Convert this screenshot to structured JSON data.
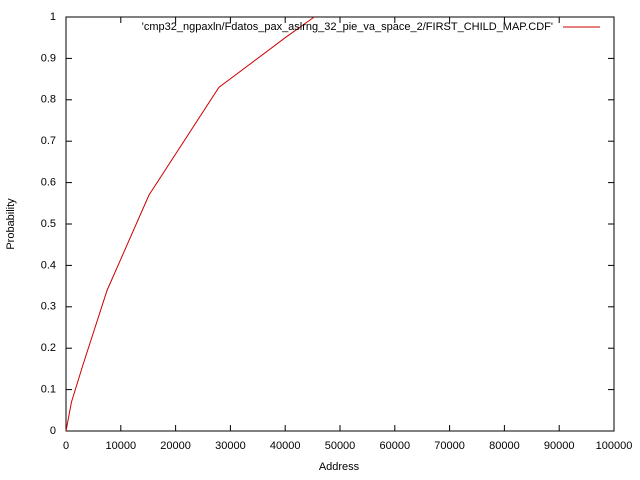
{
  "chart_data": {
    "type": "line",
    "x_label": "Address",
    "y_label": "Probability",
    "legend": "top-right",
    "series": [
      {
        "name": "'cmp32_ngpaxln/Fdatos_pax_aslrng_32_pie_va_space_2/FIRST_CHILD_MAP.CDF'",
        "color": "#cc0000",
        "x": [
          0,
          1000,
          3100,
          7500,
          15150,
          27900,
          40000,
          45300
        ],
        "values": [
          0,
          0.07,
          0.16,
          0.34,
          0.57,
          0.83,
          0.95,
          1.0
        ]
      }
    ],
    "xlim": [
      0,
      100000
    ],
    "ylim": [
      0,
      1
    ],
    "xticks": [
      0,
      10000,
      20000,
      30000,
      40000,
      50000,
      60000,
      70000,
      80000,
      90000,
      100000
    ],
    "yticks": [
      0,
      0.1,
      0.2,
      0.3,
      0.4,
      0.5,
      0.6,
      0.7,
      0.8,
      0.9,
      1
    ]
  }
}
